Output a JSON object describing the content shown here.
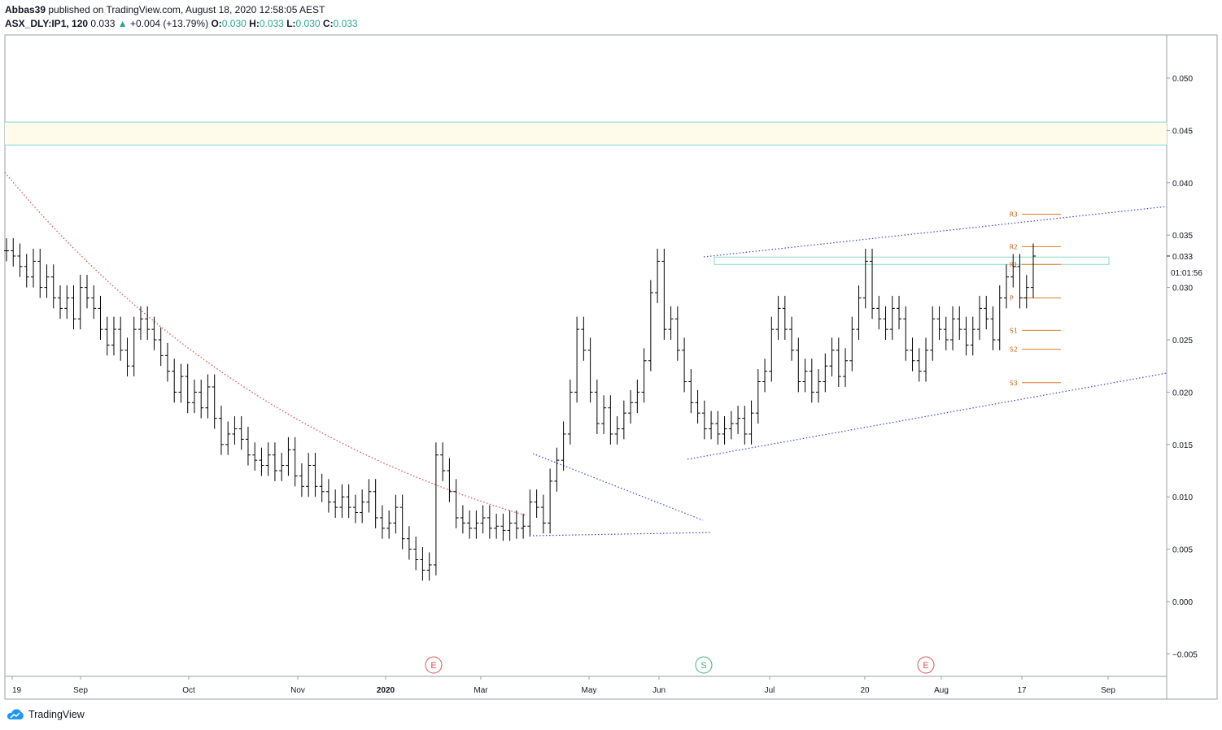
{
  "header": {
    "author": "Abbas39",
    "published_text": "published on TradingView.com, August 18, 2020 12:58:05 AEST",
    "symbol": "ASX_DLY:IP1, 120",
    "last": "0.033",
    "arrow": "▲",
    "change": "+0.004 (+13.79%)",
    "o_label": "O:",
    "o_value": "0.030",
    "h_label": "H:",
    "h_value": "0.033",
    "l_label": "L:",
    "l_value": "0.030",
    "c_label": "C:",
    "c_value": "0.033"
  },
  "footer": {
    "brand": "TradingView"
  },
  "chart_data": {
    "type": "candlestick",
    "ylim": [
      -0.0075,
      0.0545
    ],
    "x_tick_labels": [
      "19",
      "Sep",
      "Oct",
      "Nov",
      "2020",
      "Mar",
      "May",
      "Jun",
      "Jul",
      "20",
      "Aug",
      "17",
      "Sep"
    ],
    "y_tick_labels": [
      "0.050",
      "0.045",
      "0.040",
      "0.035",
      "0.030",
      "0.025",
      "0.020",
      "0.015",
      "0.010",
      "0.005",
      "0.000",
      "−0.005"
    ],
    "y_ticks": [
      0.05,
      0.045,
      0.04,
      0.035,
      0.03,
      0.025,
      0.02,
      0.015,
      0.01,
      0.005,
      0.0,
      -0.005
    ],
    "last_price": {
      "value": 0.033,
      "label": "0.033",
      "countdown": "01:01:56"
    },
    "zone": {
      "top": 0.0458,
      "bottom": 0.0436,
      "fill": "#fffbea",
      "border": "#7fd4dc"
    },
    "resistance_box": {
      "top": 0.0329,
      "bottom": 0.0322,
      "border": "#8ed8c2"
    },
    "pivots": [
      {
        "label": "R3",
        "value": 0.037
      },
      {
        "label": "R2",
        "value": 0.0339
      },
      {
        "label": "R1",
        "value": 0.0322
      },
      {
        "label": "P",
        "value": 0.029
      },
      {
        "label": "S1",
        "value": 0.0259
      },
      {
        "label": "S2",
        "value": 0.0241
      },
      {
        "label": "S3",
        "value": 0.0209
      }
    ],
    "events": [
      {
        "label": "E",
        "type": "earnings"
      },
      {
        "label": "S",
        "type": "split"
      },
      {
        "label": "E",
        "type": "earnings"
      }
    ],
    "ohlc_path": [
      0.0335,
      0.033,
      0.032,
      0.031,
      0.0325,
      0.03,
      0.031,
      0.029,
      0.028,
      0.029,
      0.027,
      0.03,
      0.029,
      0.028,
      0.026,
      0.0245,
      0.026,
      0.024,
      0.0225,
      0.026,
      0.027,
      0.026,
      0.025,
      0.0235,
      0.022,
      0.02,
      0.0215,
      0.019,
      0.02,
      0.0185,
      0.0205,
      0.0175,
      0.015,
      0.016,
      0.0165,
      0.0155,
      0.014,
      0.0135,
      0.013,
      0.014,
      0.0125,
      0.013,
      0.0145,
      0.012,
      0.011,
      0.013,
      0.011,
      0.0105,
      0.0095,
      0.009,
      0.01,
      0.009,
      0.0085,
      0.0095,
      0.0105,
      0.008,
      0.007,
      0.0075,
      0.009,
      0.006,
      0.005,
      0.004,
      0.003,
      0.0035,
      0.014,
      0.0125,
      0.0105,
      0.008,
      0.0075,
      0.007,
      0.0075,
      0.008,
      0.007,
      0.0072,
      0.0068,
      0.0075,
      0.007,
      0.0072,
      0.0095,
      0.009,
      0.0075,
      0.0115,
      0.0135,
      0.016,
      0.02,
      0.026,
      0.024,
      0.02,
      0.017,
      0.0185,
      0.016,
      0.0165,
      0.018,
      0.019,
      0.02,
      0.023,
      0.0295,
      0.0325,
      0.026,
      0.027,
      0.024,
      0.021,
      0.019,
      0.018,
      0.0165,
      0.017,
      0.016,
      0.0165,
      0.017,
      0.0175,
      0.016,
      0.018,
      0.021,
      0.022,
      0.026,
      0.028,
      0.026,
      0.024,
      0.021,
      0.022,
      0.02,
      0.021,
      0.0225,
      0.024,
      0.0215,
      0.023,
      0.026,
      0.029,
      0.0325,
      0.028,
      0.027,
      0.026,
      0.028,
      0.027,
      0.024,
      0.023,
      0.022,
      0.024,
      0.027,
      0.026,
      0.025,
      0.027,
      0.026,
      0.0245,
      0.026,
      0.028,
      0.027,
      0.025,
      0.029,
      0.031,
      0.032,
      0.029,
      0.03,
      0.033
    ]
  }
}
